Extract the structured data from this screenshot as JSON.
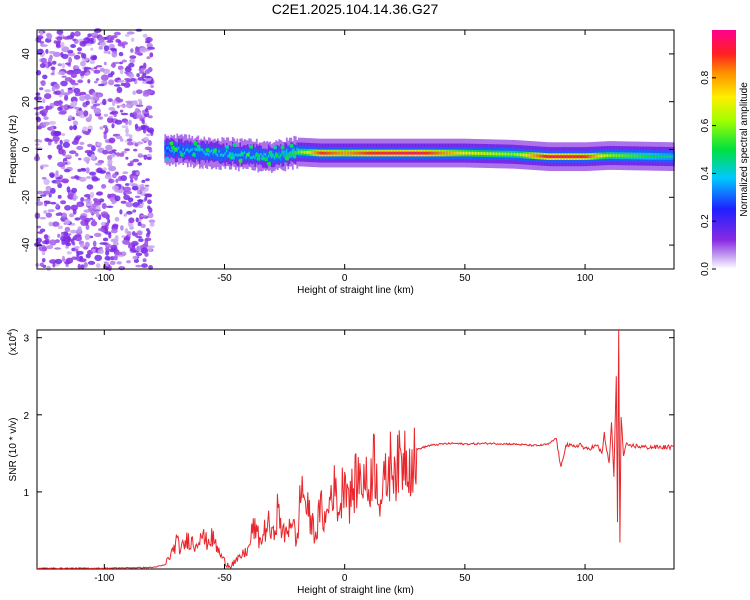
{
  "title": "C2E1.2025.104.14.36.G27",
  "chart_data": [
    {
      "type": "heatmap",
      "xlabel": "Height of straight line (km)",
      "ylabel": "Frequency (Hz)",
      "xlim": [
        -128,
        137
      ],
      "ylim": [
        -50,
        50
      ],
      "xticks": [
        -100,
        -50,
        0,
        50,
        100
      ],
      "yticks": [
        -40,
        -20,
        0,
        20,
        40
      ],
      "colorbar": {
        "label": "Normalized spectral amplitude",
        "range": [
          0.0,
          1.0
        ],
        "ticks": [
          "0.0",
          "0.2",
          "0.4",
          "0.6",
          "0.8"
        ],
        "colormap": "rainbow (white → violet → blue → cyan → green → yellow → red → magenta)"
      },
      "ridge": [
        {
          "x": -75,
          "freq": 0.0,
          "amp": 0.35
        },
        {
          "x": -60,
          "freq": -1.0,
          "amp": 0.4
        },
        {
          "x": -45,
          "freq": -2.0,
          "amp": 0.4
        },
        {
          "x": -30,
          "freq": -3.0,
          "amp": 0.4
        },
        {
          "x": -20,
          "freq": -1.0,
          "amp": 0.55
        },
        {
          "x": -10,
          "freq": -1.5,
          "amp": 0.9
        },
        {
          "x": 0,
          "freq": -1.5,
          "amp": 0.8
        },
        {
          "x": 10,
          "freq": -1.5,
          "amp": 0.9
        },
        {
          "x": 30,
          "freq": -1.5,
          "amp": 0.95
        },
        {
          "x": 50,
          "freq": -1.5,
          "amp": 0.7
        },
        {
          "x": 70,
          "freq": -2.0,
          "amp": 0.6
        },
        {
          "x": 85,
          "freq": -3.0,
          "amp": 0.95
        },
        {
          "x": 100,
          "freq": -3.0,
          "amp": 0.9
        },
        {
          "x": 110,
          "freq": -2.5,
          "amp": 0.6
        },
        {
          "x": 137,
          "freq": -3.0,
          "amp": 0.45
        }
      ]
    },
    {
      "type": "line",
      "xlabel": "Height of straight line (km)",
      "ylabel": "SNR (10 * v/v)",
      "y_scale_label": "(x10^4)",
      "xlim": [
        -128,
        137
      ],
      "ylim": [
        0,
        3.1
      ],
      "xticks": [
        -100,
        -50,
        0,
        50,
        100
      ],
      "yticks": [
        1,
        2,
        3
      ],
      "color": "#e8262b",
      "series": [
        {
          "x": [
            -128,
            -100,
            -80,
            -75,
            -72,
            -70,
            -68,
            -65,
            -62,
            -60,
            -58,
            -55,
            -52,
            -50,
            -48,
            -45,
            -42,
            -40,
            -38,
            -35,
            -32,
            -30,
            -28,
            -25,
            -22,
            -20,
            -18,
            -15,
            -12,
            -10,
            -8,
            -5,
            -2,
            0,
            2,
            5,
            8,
            10,
            12,
            15,
            18,
            20,
            22,
            25,
            28,
            30,
            35,
            40,
            45,
            50,
            60,
            70,
            80,
            85,
            88,
            90,
            92,
            95,
            98,
            100,
            103,
            105,
            107,
            108,
            110,
            111,
            112,
            113,
            113.5,
            114,
            114.5,
            115,
            116,
            117,
            118,
            120,
            125,
            130,
            137
          ],
          "y": [
            0.01,
            0.01,
            0.02,
            0.05,
            0.2,
            0.35,
            0.25,
            0.4,
            0.3,
            0.5,
            0.35,
            0.4,
            0.2,
            0.1,
            0.05,
            0.1,
            0.2,
            0.25,
            0.55,
            0.35,
            0.6,
            0.4,
            0.75,
            0.4,
            0.7,
            0.3,
            1.1,
            0.7,
            0.45,
            0.8,
            0.6,
            1.1,
            0.75,
            1.3,
            0.9,
            1.15,
            1.2,
            1.0,
            1.45,
            0.9,
            1.25,
            1.45,
            1.3,
            1.5,
            1.4,
            1.55,
            1.6,
            1.62,
            1.63,
            1.62,
            1.63,
            1.62,
            1.6,
            1.62,
            1.7,
            1.3,
            1.62,
            1.58,
            1.62,
            1.55,
            1.58,
            1.6,
            1.5,
            1.75,
            1.35,
            1.9,
            1.2,
            2.5,
            0.6,
            3.1,
            0.35,
            2.0,
            1.45,
            1.62,
            1.58,
            1.6,
            1.58,
            1.58,
            1.58
          ]
        }
      ]
    }
  ]
}
